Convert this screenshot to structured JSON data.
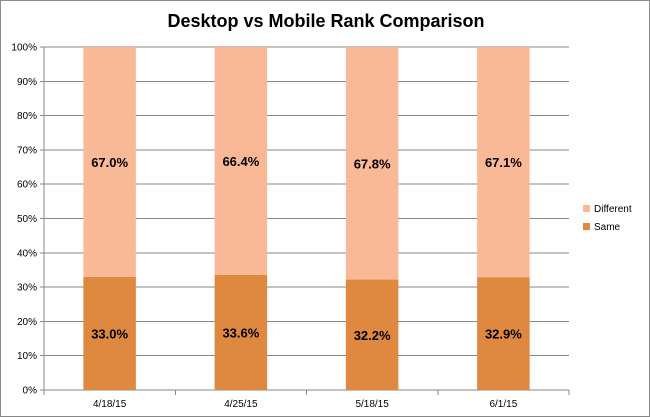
{
  "chart_data": {
    "type": "bar",
    "stacked": true,
    "normalized": true,
    "title": "Desktop vs Mobile Rank Comparison",
    "categories": [
      "4/18/15",
      "4/25/15",
      "5/18/15",
      "6/1/15"
    ],
    "series": [
      {
        "name": "Same",
        "values": [
          33.0,
          33.6,
          32.2,
          32.9
        ],
        "labels": [
          "33.0%",
          "33.6%",
          "32.2%",
          "32.9%"
        ],
        "color": "#de8840"
      },
      {
        "name": "Different",
        "values": [
          67.0,
          66.4,
          67.8,
          67.1
        ],
        "labels": [
          "67.0%",
          "66.4%",
          "67.8%",
          "67.1%"
        ],
        "color": "#f9b896"
      }
    ],
    "y_ticks": [
      "0%",
      "10%",
      "20%",
      "30%",
      "40%",
      "50%",
      "60%",
      "70%",
      "80%",
      "90%",
      "100%"
    ],
    "ylim": [
      0,
      100
    ],
    "grid": true,
    "legend_position": "right",
    "legend_order": [
      "Different",
      "Same"
    ]
  }
}
